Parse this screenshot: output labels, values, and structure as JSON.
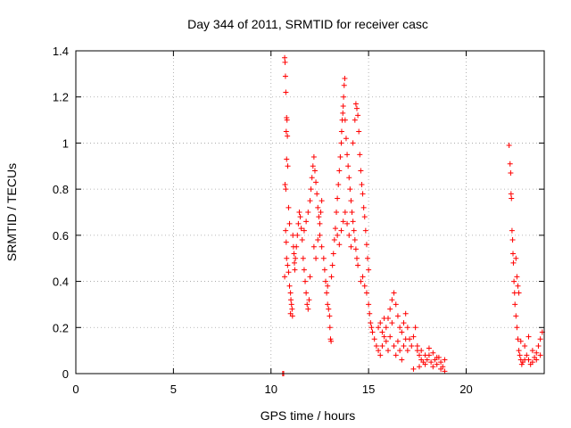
{
  "chart_data": {
    "type": "scatter",
    "title": "Day 344 of 2011, SRMTID for receiver casc",
    "xlabel": "GPS time / hours",
    "ylabel": "SRMTID / TECUs",
    "xlim": [
      0,
      24
    ],
    "ylim": [
      0,
      1.4
    ],
    "xticks": [
      0,
      5,
      10,
      15,
      20
    ],
    "yticks": [
      0,
      0.2,
      0.4,
      0.6,
      0.8,
      1,
      1.2,
      1.4
    ],
    "xtick_labels": [
      "0",
      "5",
      "10",
      "15",
      "20"
    ],
    "ytick_labels": [
      "0",
      "0.2",
      "0.4",
      "0.6",
      "0.8",
      "1",
      "1.2",
      "1.4"
    ],
    "grid": true,
    "marker": "plus",
    "color": "#ff0000",
    "series": [
      {
        "points": [
          [
            10.6,
            0.0
          ],
          [
            10.65,
            0.0
          ],
          [
            10.7,
            1.37
          ],
          [
            10.72,
            1.35
          ],
          [
            10.74,
            1.29
          ],
          [
            10.76,
            1.22
          ],
          [
            10.8,
            1.11
          ],
          [
            10.82,
            1.1
          ],
          [
            10.78,
            1.05
          ],
          [
            10.84,
            1.03
          ],
          [
            10.8,
            0.93
          ],
          [
            10.86,
            0.9
          ],
          [
            10.72,
            0.82
          ],
          [
            10.76,
            0.8
          ],
          [
            10.9,
            0.72
          ],
          [
            10.95,
            0.65
          ],
          [
            10.75,
            0.62
          ],
          [
            10.78,
            0.57
          ],
          [
            10.8,
            0.5
          ],
          [
            10.85,
            0.47
          ],
          [
            10.9,
            0.44
          ],
          [
            10.7,
            0.42
          ],
          [
            10.95,
            0.38
          ],
          [
            11.0,
            0.35
          ],
          [
            11.02,
            0.32
          ],
          [
            11.05,
            0.3
          ],
          [
            11.08,
            0.28
          ],
          [
            11.0,
            0.26
          ],
          [
            11.1,
            0.25
          ],
          [
            11.12,
            0.6
          ],
          [
            11.15,
            0.55
          ],
          [
            11.18,
            0.52
          ],
          [
            11.2,
            0.48
          ],
          [
            11.22,
            0.45
          ],
          [
            11.25,
            0.5
          ],
          [
            11.3,
            0.55
          ],
          [
            11.35,
            0.6
          ],
          [
            11.4,
            0.65
          ],
          [
            11.45,
            0.7
          ],
          [
            11.5,
            0.68
          ],
          [
            11.55,
            0.63
          ],
          [
            11.6,
            0.58
          ],
          [
            11.65,
            0.5
          ],
          [
            11.7,
            0.45
          ],
          [
            11.75,
            0.4
          ],
          [
            11.8,
            0.35
          ],
          [
            11.85,
            0.3
          ],
          [
            11.9,
            0.28
          ],
          [
            11.95,
            0.32
          ],
          [
            12.0,
            0.42
          ],
          [
            11.7,
            0.62
          ],
          [
            11.8,
            0.66
          ],
          [
            11.9,
            0.7
          ],
          [
            12.0,
            0.75
          ],
          [
            12.05,
            0.8
          ],
          [
            12.1,
            0.85
          ],
          [
            12.15,
            0.9
          ],
          [
            12.2,
            0.94
          ],
          [
            12.25,
            0.88
          ],
          [
            12.3,
            0.83
          ],
          [
            12.35,
            0.78
          ],
          [
            12.4,
            0.72
          ],
          [
            12.45,
            0.68
          ],
          [
            12.5,
            0.65
          ],
          [
            12.55,
            0.7
          ],
          [
            12.6,
            0.75
          ],
          [
            12.2,
            0.55
          ],
          [
            12.3,
            0.5
          ],
          [
            12.4,
            0.58
          ],
          [
            12.5,
            0.6
          ],
          [
            12.6,
            0.55
          ],
          [
            12.7,
            0.5
          ],
          [
            12.75,
            0.45
          ],
          [
            12.8,
            0.4
          ],
          [
            12.85,
            0.35
          ],
          [
            12.9,
            0.3
          ],
          [
            12.95,
            0.28
          ],
          [
            13.0,
            0.25
          ],
          [
            13.02,
            0.2
          ],
          [
            13.05,
            0.15
          ],
          [
            13.08,
            0.14
          ],
          [
            12.9,
            0.38
          ],
          [
            13.1,
            0.42
          ],
          [
            13.15,
            0.47
          ],
          [
            13.2,
            0.52
          ],
          [
            13.25,
            0.58
          ],
          [
            13.3,
            0.63
          ],
          [
            13.35,
            0.7
          ],
          [
            13.4,
            0.76
          ],
          [
            13.45,
            0.82
          ],
          [
            13.5,
            0.88
          ],
          [
            13.55,
            0.94
          ],
          [
            13.6,
            1.0
          ],
          [
            13.62,
            1.05
          ],
          [
            13.65,
            1.1
          ],
          [
            13.68,
            1.13
          ],
          [
            13.7,
            1.16
          ],
          [
            13.72,
            1.2
          ],
          [
            13.75,
            1.25
          ],
          [
            13.78,
            1.28
          ],
          [
            13.8,
            1.1
          ],
          [
            13.85,
            1.02
          ],
          [
            13.9,
            0.95
          ],
          [
            13.95,
            0.9
          ],
          [
            14.0,
            0.85
          ],
          [
            14.05,
            0.8
          ],
          [
            14.1,
            0.75
          ],
          [
            14.15,
            0.7
          ],
          [
            14.2,
            0.66
          ],
          [
            14.25,
            0.62
          ],
          [
            14.3,
            0.58
          ],
          [
            14.35,
            0.54
          ],
          [
            14.4,
            0.5
          ],
          [
            14.45,
            0.47
          ],
          [
            13.4,
            0.6
          ],
          [
            13.5,
            0.56
          ],
          [
            13.6,
            0.62
          ],
          [
            13.7,
            0.66
          ],
          [
            13.8,
            0.7
          ],
          [
            13.9,
            0.65
          ],
          [
            14.0,
            0.6
          ],
          [
            14.1,
            0.55
          ],
          [
            14.2,
            1.0
          ],
          [
            14.3,
            1.1
          ],
          [
            14.35,
            1.17
          ],
          [
            14.4,
            1.15
          ],
          [
            14.45,
            1.12
          ],
          [
            14.5,
            1.05
          ],
          [
            14.55,
            0.95
          ],
          [
            14.6,
            0.88
          ],
          [
            14.65,
            0.82
          ],
          [
            14.7,
            0.78
          ],
          [
            14.75,
            0.72
          ],
          [
            14.8,
            0.68
          ],
          [
            14.85,
            0.62
          ],
          [
            14.9,
            0.56
          ],
          [
            14.95,
            0.5
          ],
          [
            15.0,
            0.45
          ],
          [
            14.6,
            0.4
          ],
          [
            14.7,
            0.42
          ],
          [
            14.8,
            0.38
          ],
          [
            14.9,
            0.35
          ],
          [
            15.0,
            0.3
          ],
          [
            15.05,
            0.26
          ],
          [
            15.1,
            0.22
          ],
          [
            15.15,
            0.2
          ],
          [
            15.2,
            0.18
          ],
          [
            15.3,
            0.15
          ],
          [
            15.4,
            0.12
          ],
          [
            15.5,
            0.1
          ],
          [
            15.6,
            0.08
          ],
          [
            15.7,
            0.12
          ],
          [
            15.8,
            0.16
          ],
          [
            15.9,
            0.2
          ],
          [
            16.0,
            0.24
          ],
          [
            16.1,
            0.28
          ],
          [
            16.2,
            0.32
          ],
          [
            16.3,
            0.35
          ],
          [
            16.4,
            0.3
          ],
          [
            16.5,
            0.25
          ],
          [
            16.6,
            0.2
          ],
          [
            16.7,
            0.18
          ],
          [
            16.8,
            0.22
          ],
          [
            16.9,
            0.26
          ],
          [
            17.0,
            0.2
          ],
          [
            17.1,
            0.15
          ],
          [
            17.2,
            0.12
          ],
          [
            17.3,
            0.16
          ],
          [
            17.4,
            0.2
          ],
          [
            17.5,
            0.1
          ],
          [
            15.5,
            0.2
          ],
          [
            15.6,
            0.22
          ],
          [
            15.7,
            0.18
          ],
          [
            15.8,
            0.24
          ],
          [
            15.9,
            0.14
          ],
          [
            16.0,
            0.1
          ],
          [
            16.1,
            0.16
          ],
          [
            16.2,
            0.22
          ],
          [
            16.3,
            0.12
          ],
          [
            16.4,
            0.08
          ],
          [
            16.5,
            0.14
          ],
          [
            16.6,
            0.1
          ],
          [
            16.7,
            0.06
          ],
          [
            16.8,
            0.12
          ],
          [
            16.9,
            0.15
          ],
          [
            17.0,
            0.1
          ],
          [
            17.6,
            0.08
          ],
          [
            17.7,
            0.06
          ],
          [
            17.8,
            0.05
          ],
          [
            17.9,
            0.04
          ],
          [
            18.0,
            0.06
          ],
          [
            18.1,
            0.08
          ],
          [
            18.2,
            0.05
          ],
          [
            18.3,
            0.03
          ],
          [
            18.4,
            0.06
          ],
          [
            18.5,
            0.04
          ],
          [
            18.6,
            0.07
          ],
          [
            18.7,
            0.05
          ],
          [
            18.8,
            0.03
          ],
          [
            18.9,
            0.06
          ],
          [
            17.5,
            0.12
          ],
          [
            17.7,
            0.1
          ],
          [
            17.9,
            0.08
          ],
          [
            18.1,
            0.11
          ],
          [
            18.3,
            0.09
          ],
          [
            18.5,
            0.07
          ],
          [
            18.7,
            0.02
          ],
          [
            18.9,
            0.01
          ],
          [
            17.3,
            0.02
          ],
          [
            17.6,
            0.03
          ],
          [
            22.2,
            0.99
          ],
          [
            22.25,
            0.91
          ],
          [
            22.28,
            0.87
          ],
          [
            22.3,
            0.78
          ],
          [
            22.32,
            0.76
          ],
          [
            22.35,
            0.62
          ],
          [
            22.38,
            0.58
          ],
          [
            22.4,
            0.52
          ],
          [
            22.42,
            0.48
          ],
          [
            22.45,
            0.4
          ],
          [
            22.48,
            0.35
          ],
          [
            22.5,
            0.3
          ],
          [
            22.55,
            0.25
          ],
          [
            22.6,
            0.2
          ],
          [
            22.65,
            0.15
          ],
          [
            22.7,
            0.1
          ],
          [
            22.75,
            0.08
          ],
          [
            22.8,
            0.06
          ],
          [
            22.85,
            0.04
          ],
          [
            22.9,
            0.05
          ],
          [
            23.0,
            0.06
          ],
          [
            23.1,
            0.08
          ],
          [
            23.2,
            0.06
          ],
          [
            23.3,
            0.04
          ],
          [
            23.4,
            0.05
          ],
          [
            23.5,
            0.07
          ],
          [
            23.6,
            0.09
          ],
          [
            23.7,
            0.12
          ],
          [
            23.8,
            0.15
          ],
          [
            23.9,
            0.18
          ],
          [
            22.8,
            0.14
          ],
          [
            23.0,
            0.12
          ],
          [
            23.2,
            0.16
          ],
          [
            23.4,
            0.1
          ],
          [
            23.6,
            0.06
          ],
          [
            23.8,
            0.08
          ],
          [
            22.6,
            0.42
          ],
          [
            22.65,
            0.38
          ],
          [
            22.7,
            0.35
          ],
          [
            22.55,
            0.5
          ]
        ]
      }
    ]
  }
}
